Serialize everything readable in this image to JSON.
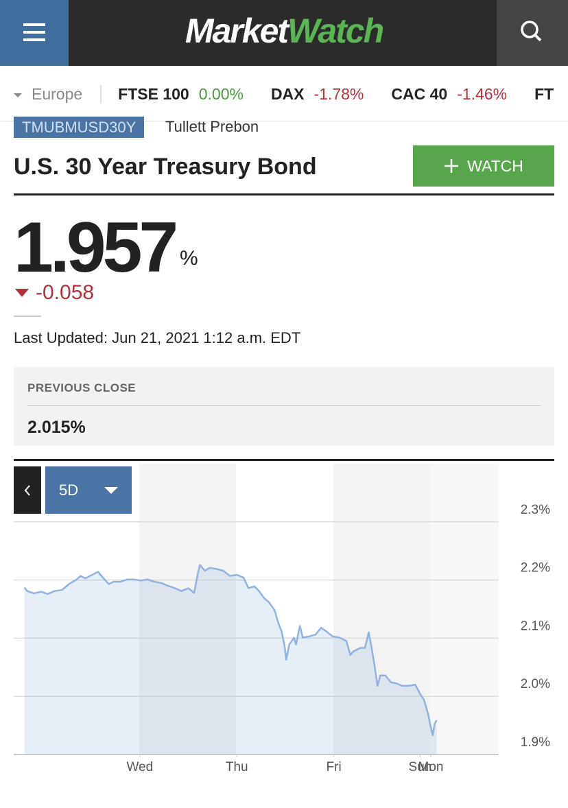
{
  "header": {
    "logo_left": "Market",
    "logo_right": "Watch"
  },
  "ticker": {
    "region": "Europe",
    "items": [
      {
        "name": "FTSE 100",
        "change": "0.00%",
        "color": "#4a9a3e"
      },
      {
        "name": "DAX",
        "change": "-1.78%",
        "color": "#b3303a"
      },
      {
        "name": "CAC 40",
        "change": "-1.46%",
        "color": "#b3303a"
      },
      {
        "name": "FT"
      }
    ]
  },
  "quote": {
    "symbol": "TMUBMUSD30Y",
    "source": "Tullett Prebon",
    "name": "U.S. 30 Year Treasury Bond",
    "watch_button": "WATCH",
    "price": "1.957",
    "price_unit": "%",
    "change": "-0.058",
    "last_updated": "Last Updated: Jun 21, 2021 1:12 a.m. EDT",
    "previous_close_label": "PREVIOUS CLOSE",
    "previous_close": "2.015%"
  },
  "chart_controls": {
    "range": "5D"
  },
  "chart_data": {
    "type": "line",
    "color": "#8fb2e0",
    "x": [
      -0.19,
      -0.16,
      -0.09,
      -0.02,
      0.05,
      0.12,
      0.2,
      0.27,
      0.34,
      0.39,
      0.44,
      0.51,
      0.57,
      0.62,
      0.68,
      0.73,
      0.8,
      0.87,
      0.94,
      1.01,
      1.08,
      1.15,
      1.22,
      1.29,
      1.36,
      1.43,
      1.5,
      1.56,
      1.6,
      1.62,
      1.67,
      1.72,
      1.79,
      1.86,
      1.93,
      2.0,
      2.07,
      2.12,
      2.18,
      2.23,
      2.28,
      2.33,
      2.39,
      2.42,
      2.46,
      2.49,
      2.51,
      2.54,
      2.59,
      2.61,
      2.65,
      2.68,
      2.74,
      2.81,
      2.87,
      2.92,
      2.99,
      3.06,
      3.13,
      3.17,
      3.2,
      3.27,
      3.32,
      3.36,
      3.39,
      3.42,
      3.45,
      3.48,
      3.53,
      3.59,
      3.65,
      3.7,
      3.77,
      3.84,
      3.89,
      3.93,
      3.97,
      4.0,
      4.02,
      4.04,
      4.06
    ],
    "values": [
      2.187,
      2.181,
      2.177,
      2.18,
      2.176,
      2.181,
      2.183,
      2.193,
      2.2,
      2.207,
      2.203,
      2.209,
      2.214,
      2.204,
      2.193,
      2.197,
      2.197,
      2.201,
      2.201,
      2.199,
      2.201,
      2.197,
      2.195,
      2.19,
      2.186,
      2.181,
      2.186,
      2.178,
      2.213,
      2.226,
      2.216,
      2.221,
      2.219,
      2.216,
      2.207,
      2.209,
      2.204,
      2.186,
      2.189,
      2.181,
      2.169,
      2.162,
      2.148,
      2.13,
      2.112,
      2.089,
      2.063,
      2.089,
      2.101,
      2.089,
      2.121,
      2.101,
      2.103,
      2.106,
      2.118,
      2.112,
      2.103,
      2.101,
      2.095,
      2.071,
      2.077,
      2.083,
      2.083,
      2.11,
      2.083,
      2.053,
      2.018,
      2.036,
      2.036,
      2.024,
      2.022,
      2.018,
      2.018,
      2.02,
      2.004,
      1.994,
      1.971,
      1.947,
      1.933,
      1.953,
      1.959
    ],
    "xlim": [
      -0.3,
      4.7
    ],
    "xticks": [
      {
        "value": 1,
        "label": "Wed"
      },
      {
        "value": 2,
        "label": "Thu"
      },
      {
        "value": 3,
        "label": "Fri"
      },
      {
        "value": 3.89,
        "label": "Sun"
      },
      {
        "value": 4,
        "label": "Mon"
      }
    ],
    "ylim": [
      1.9,
      2.4
    ],
    "yticks": [
      {
        "value": 1.9,
        "label": "1.9%"
      },
      {
        "value": 2.0,
        "label": "2.0%"
      },
      {
        "value": 2.1,
        "label": "2.1%"
      },
      {
        "value": 2.2,
        "label": "2.2%"
      },
      {
        "value": 2.3,
        "label": "2.3%"
      }
    ],
    "grid": true
  }
}
